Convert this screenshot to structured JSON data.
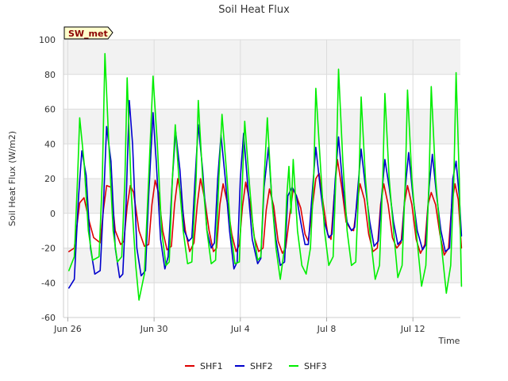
{
  "chart_data": {
    "type": "line",
    "title": "Soil Heat Flux",
    "xlabel": "Time",
    "ylabel": "Soil Heat Flux (W/m2)",
    "badge": "SW_met",
    "ylim": [
      -60,
      100
    ],
    "y_ticks": [
      -60,
      -40,
      -20,
      0,
      20,
      40,
      60,
      80,
      100
    ],
    "x_range_days": [
      -0.2,
      18.2
    ],
    "x_ticks": [
      {
        "label": "Jun 26",
        "day": 0
      },
      {
        "label": "Jun 30",
        "day": 4
      },
      {
        "label": "Jul 4",
        "day": 8
      },
      {
        "label": "Jul 8",
        "day": 12
      },
      {
        "label": "Jul 12",
        "day": 16
      }
    ],
    "x_units": "days since Jun 26 00:00",
    "series": [
      {
        "name": "SHF1",
        "color": "#dd0000",
        "points": [
          [
            0.05,
            -22
          ],
          [
            0.3,
            -20
          ],
          [
            0.55,
            6
          ],
          [
            0.75,
            9
          ],
          [
            1.0,
            -5
          ],
          [
            1.2,
            -14
          ],
          [
            1.5,
            -17
          ],
          [
            1.65,
            2
          ],
          [
            1.8,
            16
          ],
          [
            2.0,
            15
          ],
          [
            2.2,
            -10
          ],
          [
            2.45,
            -18
          ],
          [
            2.6,
            -16
          ],
          [
            2.75,
            4
          ],
          [
            2.9,
            16
          ],
          [
            3.05,
            12
          ],
          [
            3.3,
            -10
          ],
          [
            3.55,
            -19
          ],
          [
            3.75,
            -18
          ],
          [
            3.9,
            5
          ],
          [
            4.05,
            19
          ],
          [
            4.2,
            12
          ],
          [
            4.4,
            -10
          ],
          [
            4.6,
            -21
          ],
          [
            4.8,
            -19
          ],
          [
            4.95,
            5
          ],
          [
            5.1,
            20
          ],
          [
            5.25,
            10
          ],
          [
            5.45,
            -10
          ],
          [
            5.65,
            -22
          ],
          [
            5.85,
            -17
          ],
          [
            6.0,
            5
          ],
          [
            6.15,
            20
          ],
          [
            6.35,
            8
          ],
          [
            6.55,
            -10
          ],
          [
            6.75,
            -22
          ],
          [
            6.9,
            -20
          ],
          [
            7.05,
            5
          ],
          [
            7.2,
            17
          ],
          [
            7.4,
            6
          ],
          [
            7.6,
            -12
          ],
          [
            7.8,
            -22
          ],
          [
            7.95,
            -18
          ],
          [
            8.1,
            4
          ],
          [
            8.25,
            18
          ],
          [
            8.45,
            6
          ],
          [
            8.65,
            -14
          ],
          [
            8.85,
            -22
          ],
          [
            9.05,
            -20
          ],
          [
            9.2,
            2
          ],
          [
            9.35,
            14
          ],
          [
            9.55,
            4
          ],
          [
            9.75,
            -16
          ],
          [
            9.95,
            -23
          ],
          [
            10.1,
            -20
          ],
          [
            10.3,
            0
          ],
          [
            10.45,
            14
          ],
          [
            10.6,
            10
          ],
          [
            10.8,
            3
          ],
          [
            11.0,
            -12
          ],
          [
            11.15,
            -16
          ],
          [
            11.35,
            5
          ],
          [
            11.5,
            20
          ],
          [
            11.65,
            23
          ],
          [
            11.85,
            5
          ],
          [
            12.05,
            -12
          ],
          [
            12.2,
            -15
          ],
          [
            12.35,
            10
          ],
          [
            12.5,
            31
          ],
          [
            12.7,
            15
          ],
          [
            12.9,
            -5
          ],
          [
            13.1,
            -9
          ],
          [
            13.25,
            -10
          ],
          [
            13.4,
            5
          ],
          [
            13.55,
            17
          ],
          [
            13.75,
            8
          ],
          [
            13.95,
            -12
          ],
          [
            14.15,
            -22
          ],
          [
            14.35,
            -20
          ],
          [
            14.5,
            5
          ],
          [
            14.65,
            17
          ],
          [
            14.85,
            5
          ],
          [
            15.05,
            -14
          ],
          [
            15.25,
            -20
          ],
          [
            15.45,
            -17
          ],
          [
            15.6,
            5
          ],
          [
            15.75,
            16
          ],
          [
            15.95,
            5
          ],
          [
            16.15,
            -15
          ],
          [
            16.35,
            -23
          ],
          [
            16.55,
            -18
          ],
          [
            16.7,
            5
          ],
          [
            16.85,
            12
          ],
          [
            17.05,
            5
          ],
          [
            17.25,
            -12
          ],
          [
            17.45,
            -24
          ],
          [
            17.65,
            -20
          ],
          [
            17.8,
            5
          ],
          [
            17.95,
            17
          ],
          [
            18.1,
            8
          ],
          [
            18.25,
            -20
          ]
        ]
      },
      {
        "name": "SHF2",
        "color": "#0000cc",
        "points": [
          [
            0.05,
            -43
          ],
          [
            0.3,
            -38
          ],
          [
            0.5,
            10
          ],
          [
            0.65,
            36
          ],
          [
            0.85,
            22
          ],
          [
            1.05,
            -20
          ],
          [
            1.25,
            -35
          ],
          [
            1.5,
            -33
          ],
          [
            1.65,
            5
          ],
          [
            1.8,
            50
          ],
          [
            2.0,
            30
          ],
          [
            2.2,
            -20
          ],
          [
            2.4,
            -37
          ],
          [
            2.55,
            -35
          ],
          [
            2.7,
            5
          ],
          [
            2.85,
            65
          ],
          [
            3.0,
            40
          ],
          [
            3.2,
            -20
          ],
          [
            3.4,
            -36
          ],
          [
            3.6,
            -33
          ],
          [
            3.75,
            10
          ],
          [
            3.95,
            58
          ],
          [
            4.1,
            30
          ],
          [
            4.3,
            -15
          ],
          [
            4.5,
            -32
          ],
          [
            4.65,
            -25
          ],
          [
            4.85,
            20
          ],
          [
            5.0,
            47
          ],
          [
            5.2,
            25
          ],
          [
            5.4,
            -10
          ],
          [
            5.6,
            -16
          ],
          [
            5.75,
            -14
          ],
          [
            5.9,
            20
          ],
          [
            6.05,
            51
          ],
          [
            6.25,
            25
          ],
          [
            6.45,
            -10
          ],
          [
            6.65,
            -20
          ],
          [
            6.8,
            -17
          ],
          [
            6.95,
            20
          ],
          [
            7.1,
            45
          ],
          [
            7.3,
            20
          ],
          [
            7.5,
            -10
          ],
          [
            7.7,
            -32
          ],
          [
            7.85,
            -28
          ],
          [
            8.0,
            20
          ],
          [
            8.15,
            46
          ],
          [
            8.35,
            15
          ],
          [
            8.55,
            -15
          ],
          [
            8.8,
            -29
          ],
          [
            8.95,
            -26
          ],
          [
            9.1,
            15
          ],
          [
            9.3,
            38
          ],
          [
            9.45,
            10
          ],
          [
            9.65,
            -15
          ],
          [
            9.85,
            -30
          ],
          [
            10.05,
            -28
          ],
          [
            10.2,
            10
          ],
          [
            10.4,
            15
          ],
          [
            10.6,
            10
          ],
          [
            10.8,
            -5
          ],
          [
            11.0,
            -18
          ],
          [
            11.15,
            -18
          ],
          [
            11.35,
            15
          ],
          [
            11.5,
            38
          ],
          [
            11.7,
            15
          ],
          [
            11.9,
            -5
          ],
          [
            12.1,
            -14
          ],
          [
            12.25,
            -12
          ],
          [
            12.4,
            20
          ],
          [
            12.55,
            44
          ],
          [
            12.75,
            15
          ],
          [
            12.95,
            -5
          ],
          [
            13.15,
            -10
          ],
          [
            13.3,
            -8
          ],
          [
            13.45,
            15
          ],
          [
            13.6,
            37
          ],
          [
            13.8,
            15
          ],
          [
            14.0,
            -5
          ],
          [
            14.2,
            -19
          ],
          [
            14.4,
            -16
          ],
          [
            14.55,
            10
          ],
          [
            14.7,
            31
          ],
          [
            14.9,
            15
          ],
          [
            15.1,
            -5
          ],
          [
            15.3,
            -18
          ],
          [
            15.5,
            -15
          ],
          [
            15.65,
            15
          ],
          [
            15.8,
            35
          ],
          [
            16.0,
            10
          ],
          [
            16.2,
            -10
          ],
          [
            16.45,
            -21
          ],
          [
            16.6,
            -18
          ],
          [
            16.75,
            15
          ],
          [
            16.9,
            34
          ],
          [
            17.1,
            10
          ],
          [
            17.3,
            -10
          ],
          [
            17.5,
            -22
          ],
          [
            17.7,
            -20
          ],
          [
            17.85,
            20
          ],
          [
            18.0,
            30
          ],
          [
            18.15,
            10
          ],
          [
            18.25,
            -13
          ]
        ]
      },
      {
        "name": "SHF3",
        "color": "#00ee00",
        "points": [
          [
            0.05,
            -33
          ],
          [
            0.3,
            -25
          ],
          [
            0.45,
            20
          ],
          [
            0.55,
            55
          ],
          [
            0.75,
            30
          ],
          [
            0.95,
            -10
          ],
          [
            1.15,
            -27
          ],
          [
            1.45,
            -25
          ],
          [
            1.6,
            20
          ],
          [
            1.72,
            92
          ],
          [
            1.9,
            40
          ],
          [
            2.1,
            -10
          ],
          [
            2.3,
            -28
          ],
          [
            2.5,
            -25
          ],
          [
            2.65,
            20
          ],
          [
            2.75,
            78
          ],
          [
            2.95,
            10
          ],
          [
            3.15,
            -30
          ],
          [
            3.3,
            -50
          ],
          [
            3.55,
            -35
          ],
          [
            3.75,
            20
          ],
          [
            3.95,
            79
          ],
          [
            4.15,
            40
          ],
          [
            4.35,
            -10
          ],
          [
            4.55,
            -30
          ],
          [
            4.7,
            -28
          ],
          [
            4.85,
            20
          ],
          [
            4.98,
            51
          ],
          [
            5.15,
            20
          ],
          [
            5.35,
            -10
          ],
          [
            5.55,
            -29
          ],
          [
            5.75,
            -28
          ],
          [
            5.95,
            20
          ],
          [
            6.05,
            65
          ],
          [
            6.25,
            20
          ],
          [
            6.45,
            -10
          ],
          [
            6.65,
            -29
          ],
          [
            6.85,
            -27
          ],
          [
            7.0,
            20
          ],
          [
            7.15,
            57
          ],
          [
            7.35,
            25
          ],
          [
            7.55,
            -10
          ],
          [
            7.75,
            -29
          ],
          [
            7.95,
            -28
          ],
          [
            8.1,
            20
          ],
          [
            8.2,
            53
          ],
          [
            8.4,
            20
          ],
          [
            8.6,
            -10
          ],
          [
            8.8,
            -27
          ],
          [
            8.95,
            -25
          ],
          [
            9.1,
            20
          ],
          [
            9.25,
            55
          ],
          [
            9.45,
            10
          ],
          [
            9.65,
            -20
          ],
          [
            9.85,
            -38
          ],
          [
            10.05,
            -20
          ],
          [
            10.15,
            10
          ],
          [
            10.25,
            27
          ],
          [
            10.35,
            0
          ],
          [
            10.45,
            31
          ],
          [
            10.65,
            -10
          ],
          [
            10.85,
            -30
          ],
          [
            11.05,
            -35
          ],
          [
            11.25,
            -20
          ],
          [
            11.4,
            20
          ],
          [
            11.5,
            72
          ],
          [
            11.7,
            30
          ],
          [
            11.9,
            -10
          ],
          [
            12.1,
            -30
          ],
          [
            12.3,
            -25
          ],
          [
            12.45,
            30
          ],
          [
            12.55,
            83
          ],
          [
            12.75,
            30
          ],
          [
            12.95,
            -10
          ],
          [
            13.15,
            -30
          ],
          [
            13.35,
            -28
          ],
          [
            13.5,
            20
          ],
          [
            13.6,
            67
          ],
          [
            13.8,
            20
          ],
          [
            14.0,
            -10
          ],
          [
            14.25,
            -38
          ],
          [
            14.45,
            -30
          ],
          [
            14.6,
            20
          ],
          [
            14.7,
            69
          ],
          [
            14.9,
            20
          ],
          [
            15.1,
            -10
          ],
          [
            15.3,
            -37
          ],
          [
            15.5,
            -30
          ],
          [
            15.65,
            20
          ],
          [
            15.75,
            71
          ],
          [
            15.95,
            20
          ],
          [
            16.15,
            -10
          ],
          [
            16.4,
            -42
          ],
          [
            16.6,
            -30
          ],
          [
            16.75,
            20
          ],
          [
            16.85,
            73
          ],
          [
            17.05,
            20
          ],
          [
            17.25,
            -10
          ],
          [
            17.55,
            -46
          ],
          [
            17.75,
            -30
          ],
          [
            17.9,
            20
          ],
          [
            18.0,
            81
          ],
          [
            18.15,
            20
          ],
          [
            18.25,
            -42
          ]
        ]
      }
    ]
  }
}
